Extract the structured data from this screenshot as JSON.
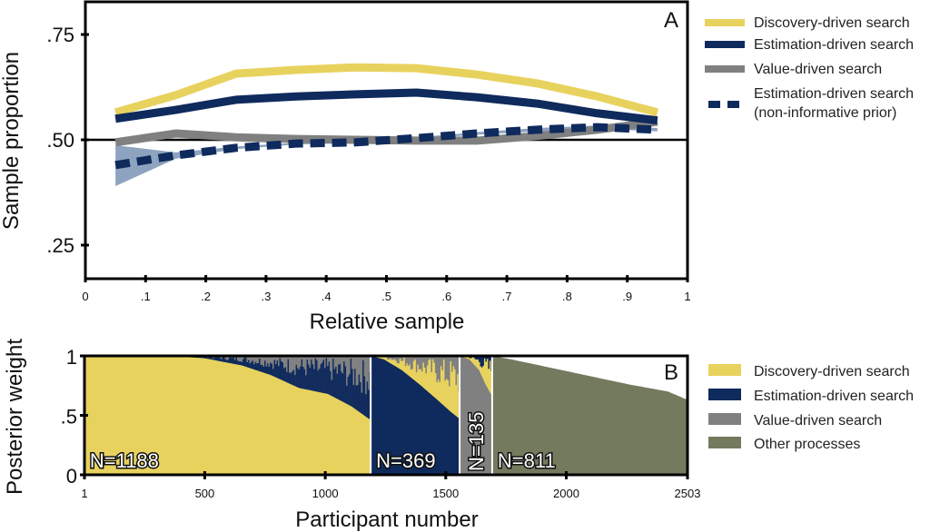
{
  "chart_data": [
    {
      "panel": "A",
      "type": "line",
      "xlabel": "Relative sample",
      "ylabel": "Sample proportion",
      "xlim": [
        0,
        1
      ],
      "ylim": [
        0.16,
        0.83
      ],
      "x_ticks": [
        "0",
        ".1",
        ".2",
        ".3",
        ".4",
        ".5",
        ".6",
        ".7",
        ".8",
        ".9",
        "1"
      ],
      "x_tick_values": [
        0,
        0.1,
        0.2,
        0.3,
        0.4,
        0.5,
        0.6,
        0.7,
        0.8,
        0.9,
        1
      ],
      "y_ticks": [
        ".25",
        ".50",
        ".75"
      ],
      "y_tick_values": [
        0.25,
        0.5,
        0.75
      ],
      "reference_line": 0.5,
      "x": [
        0.05,
        0.15,
        0.25,
        0.35,
        0.45,
        0.55,
        0.65,
        0.75,
        0.85,
        0.95
      ],
      "series": [
        {
          "name": "Discovery-driven search",
          "color": "#e8d25e",
          "style": "solid",
          "values": [
            0.565,
            0.606,
            0.657,
            0.666,
            0.672,
            0.67,
            0.655,
            0.634,
            0.603,
            0.565
          ]
        },
        {
          "name": "Estimation-driven search",
          "color": "#0f2a5c",
          "style": "solid",
          "values": [
            0.55,
            0.571,
            0.595,
            0.603,
            0.608,
            0.612,
            0.601,
            0.586,
            0.563,
            0.546
          ]
        },
        {
          "name": "Value-driven search",
          "color": "#808080",
          "style": "solid",
          "values": [
            0.494,
            0.515,
            0.506,
            0.502,
            0.5,
            0.498,
            0.498,
            0.509,
            0.524,
            0.543
          ]
        },
        {
          "name": "Estimation-driven search (non-informative prior)",
          "color": "#0f2a5c",
          "style": "dashed",
          "values": [
            0.44,
            0.463,
            0.481,
            0.491,
            0.494,
            0.504,
            0.515,
            0.524,
            0.53,
            0.524
          ],
          "band_lower": [
            0.39,
            0.455,
            0.478,
            0.489,
            0.492,
            0.502,
            0.512,
            0.52,
            0.526,
            0.52
          ],
          "band_upper": [
            0.487,
            0.47,
            0.484,
            0.493,
            0.496,
            0.506,
            0.518,
            0.528,
            0.534,
            0.528
          ],
          "band_color": "#8ea3bf"
        }
      ],
      "legend": [
        {
          "label": "Discovery-driven search",
          "color": "#e8d25e",
          "style": "solid"
        },
        {
          "label": "Estimation-driven search",
          "color": "#0f2a5c",
          "style": "solid"
        },
        {
          "label": "Value-driven search",
          "color": "#808080",
          "style": "solid"
        },
        {
          "label": "Estimation-driven search",
          "label2": "(non-informative prior)",
          "color": "#0f2a5c",
          "style": "dashed"
        }
      ],
      "legend_position": "right"
    },
    {
      "panel": "B",
      "type": "area",
      "xlabel": "Participant number",
      "ylabel": "Posterior weight",
      "xlim": [
        1,
        2503
      ],
      "ylim": [
        0,
        1
      ],
      "x_ticks": [
        "1",
        "500",
        "1000",
        "1500",
        "2000",
        "2503"
      ],
      "x_tick_values": [
        1,
        500,
        1000,
        1500,
        2000,
        2503
      ],
      "y_ticks": [
        "0",
        ".5",
        "1"
      ],
      "y_tick_values": [
        0,
        0.5,
        1
      ],
      "groups": [
        {
          "name": "Discovery-driven search",
          "n_label": "N=1188",
          "start": 1,
          "end": 1188,
          "color": "#e8d25e",
          "secondary_color": "#0f2a5c",
          "tertiary_color": "#808080",
          "profile_x": [
            0,
            0.3,
            0.42,
            0.55,
            0.65,
            0.75,
            0.85,
            0.93,
            1.0
          ],
          "profile_y": [
            1.0,
            1.0,
            0.98,
            0.92,
            0.84,
            0.73,
            0.68,
            0.58,
            0.46
          ]
        },
        {
          "name": "Estimation-driven search",
          "n_label": "N=369",
          "start": 1189,
          "end": 1557,
          "color": "#0f2a5c",
          "secondary_color": "#e8d25e",
          "tertiary_color": "#808080",
          "profile_x": [
            0,
            0.15,
            0.35,
            0.55,
            0.75,
            0.9,
            1.0
          ],
          "profile_y": [
            1.0,
            0.97,
            0.88,
            0.76,
            0.63,
            0.53,
            0.47
          ]
        },
        {
          "name": "Value-driven search",
          "n_label": "N=135",
          "start": 1558,
          "end": 1692,
          "color": "#808080",
          "secondary_color": "#e8d25e",
          "tertiary_color": "#0f2a5c",
          "profile_x": [
            0,
            0.3,
            0.6,
            0.8,
            1.0
          ],
          "profile_y": [
            1.0,
            0.97,
            0.88,
            0.76,
            0.66
          ]
        },
        {
          "name": "Other processes",
          "n_label": "N=811",
          "start": 1693,
          "end": 2503,
          "color": "#747a5e",
          "profile_x": [
            0,
            0.1,
            0.3,
            0.5,
            0.7,
            0.9,
            1.0
          ],
          "profile_y": [
            1.0,
            0.97,
            0.9,
            0.83,
            0.76,
            0.7,
            0.63
          ]
        }
      ],
      "legend": [
        {
          "label": "Discovery-driven search",
          "color": "#e8d25e"
        },
        {
          "label": "Estimation-driven search",
          "color": "#0f2a5c"
        },
        {
          "label": "Value-driven search",
          "color": "#808080"
        },
        {
          "label": "Other processes",
          "color": "#747a5e"
        }
      ],
      "legend_position": "right"
    }
  ],
  "panels": {
    "a_label": "A",
    "b_label": "B"
  }
}
